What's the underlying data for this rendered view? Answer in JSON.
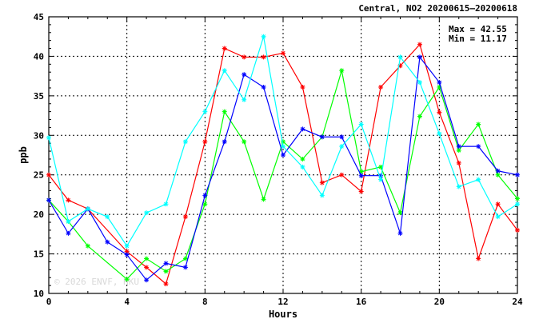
{
  "chart_data": {
    "type": "line",
    "title": "Central, NO2 20200615—20200618",
    "xlabel": "Hours",
    "ylabel": "ppb",
    "xlim": [
      0,
      24
    ],
    "ylim": [
      10,
      45
    ],
    "xticks": [
      0,
      4,
      8,
      12,
      16,
      20,
      24
    ],
    "yticks": [
      10,
      15,
      20,
      25,
      30,
      35,
      40,
      45
    ],
    "grid": true,
    "annotations": [
      "Max = 42.55",
      "Min = 11.17"
    ],
    "watermark": "© 2026  ENVF, HKU",
    "x": [
      0,
      1,
      2,
      3,
      4,
      5,
      6,
      7,
      8,
      9,
      10,
      11,
      12,
      13,
      14,
      15,
      16,
      17,
      18,
      19,
      20,
      21,
      22,
      23,
      24
    ],
    "series": [
      {
        "color": "#ff0000",
        "values": [
          25.0,
          21.8,
          20.7,
          null,
          15.3,
          13.3,
          11.2,
          19.7,
          29.2,
          41.0,
          39.9,
          39.9,
          40.4,
          36.1,
          24.0,
          25.0,
          22.9,
          36.1,
          38.8,
          41.5,
          32.9,
          26.5,
          14.4,
          21.3,
          18.0
        ]
      },
      {
        "color": "#00ff00",
        "values": [
          21.8,
          19.1,
          16.0,
          null,
          11.8,
          14.4,
          12.8,
          14.4,
          21.3,
          33.0,
          29.2,
          21.9,
          29.2,
          27.0,
          29.8,
          38.2,
          25.4,
          26.0,
          20.2,
          32.4,
          36.1,
          28.1,
          31.4,
          25.0,
          22.0
        ]
      },
      {
        "color": "#0000ff",
        "values": [
          21.8,
          17.6,
          20.7,
          16.5,
          14.9,
          11.7,
          13.8,
          13.3,
          22.4,
          29.2,
          37.7,
          36.1,
          27.5,
          30.8,
          29.8,
          29.8,
          24.9,
          24.9,
          17.6,
          39.9,
          36.7,
          28.6,
          28.6,
          25.5,
          25.0
        ]
      },
      {
        "color": "#00ffff",
        "values": [
          29.7,
          19.1,
          20.7,
          19.7,
          16.0,
          20.2,
          21.3,
          29.2,
          33.0,
          38.2,
          34.5,
          42.5,
          28.6,
          26.0,
          22.4,
          28.6,
          31.4,
          24.4,
          39.9,
          36.7,
          30.2,
          23.5,
          24.4,
          19.7,
          21.3
        ]
      }
    ]
  }
}
